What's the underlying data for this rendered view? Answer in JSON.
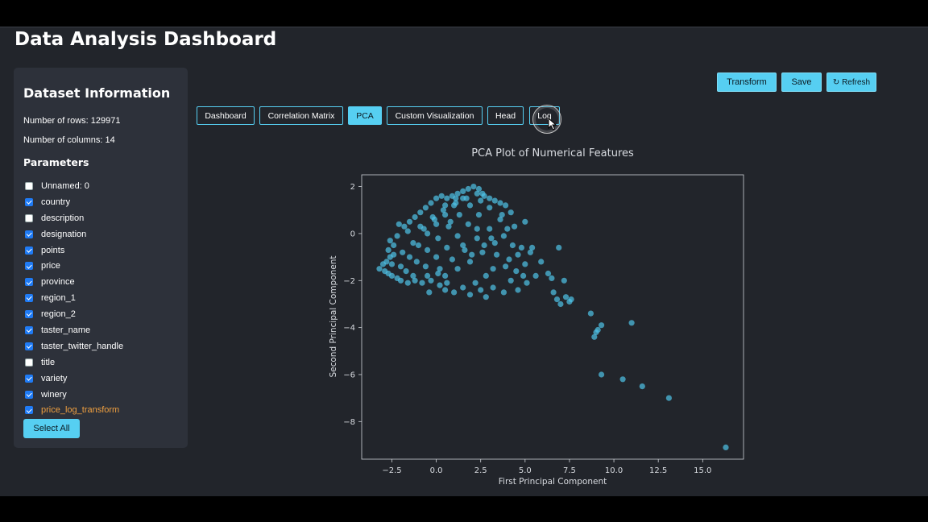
{
  "app": {
    "title": "Data Analysis Dashboard"
  },
  "sidebar": {
    "heading": "Dataset Information",
    "rows_text": "Number of rows: 129971",
    "cols_text": "Number of columns: 14",
    "params_heading": "Parameters",
    "params": [
      {
        "label": "Unnamed: 0",
        "checked": false
      },
      {
        "label": "country",
        "checked": true
      },
      {
        "label": "description",
        "checked": false
      },
      {
        "label": "designation",
        "checked": true
      },
      {
        "label": "points",
        "checked": true
      },
      {
        "label": "price",
        "checked": true
      },
      {
        "label": "province",
        "checked": true
      },
      {
        "label": "region_1",
        "checked": true
      },
      {
        "label": "region_2",
        "checked": true
      },
      {
        "label": "taster_name",
        "checked": true
      },
      {
        "label": "taster_twitter_handle",
        "checked": true
      },
      {
        "label": "title",
        "checked": false
      },
      {
        "label": "variety",
        "checked": true
      },
      {
        "label": "winery",
        "checked": true
      },
      {
        "label": "price_log_transform",
        "checked": true,
        "accent": true
      }
    ],
    "select_all_label": "Select All"
  },
  "actions": {
    "transform_label": "Transform",
    "save_label": "Save",
    "refresh_label": "↻ Refresh"
  },
  "tabs": [
    {
      "label": "Dashboard",
      "active": false
    },
    {
      "label": "Correlation Matrix",
      "active": false
    },
    {
      "label": "PCA",
      "active": true
    },
    {
      "label": "Custom Visualization",
      "active": false
    },
    {
      "label": "Head",
      "active": false
    },
    {
      "label": "Log",
      "active": false
    }
  ],
  "colors": {
    "accent": "#56cff2",
    "point": "#4fc3e8",
    "panel": "#2d313a",
    "background": "#22252b"
  },
  "chart_data": {
    "type": "scatter",
    "title": "PCA Plot of Numerical Features",
    "xlabel": "First Principal Component",
    "ylabel": "Second Principal Component",
    "xlim": [
      -4.2,
      17.3
    ],
    "ylim": [
      -9.6,
      2.5
    ],
    "x_ticks": [
      -2.5,
      0.0,
      2.5,
      5.0,
      7.5,
      10.0,
      12.5,
      15.0
    ],
    "x_tick_labels": [
      "−2.5",
      "0.0",
      "2.5",
      "5.0",
      "7.5",
      "10.0",
      "12.5",
      "15.0"
    ],
    "y_ticks": [
      2,
      0,
      -2,
      -4,
      -6,
      -8
    ],
    "y_tick_labels": [
      "2",
      "0",
      "−2",
      "−4",
      "−6",
      "−8"
    ],
    "grid": false,
    "points": [
      [
        -3.2,
        -1.5
      ],
      [
        -3.0,
        -1.3
      ],
      [
        -2.8,
        -1.2
      ],
      [
        -2.6,
        -1.0
      ],
      [
        -2.4,
        -0.9
      ],
      [
        -2.9,
        -1.6
      ],
      [
        -2.7,
        -1.7
      ],
      [
        -2.5,
        -1.8
      ],
      [
        -2.2,
        -1.9
      ],
      [
        -2.0,
        -2.0
      ],
      [
        -1.6,
        -2.1
      ],
      [
        -1.2,
        -2.0
      ],
      [
        -0.8,
        -2.1
      ],
      [
        -0.3,
        -2.0
      ],
      [
        0.2,
        -2.2
      ],
      [
        0.6,
        -2.1
      ],
      [
        -2.6,
        -0.3
      ],
      [
        -2.4,
        -0.5
      ],
      [
        -2.7,
        -0.7
      ],
      [
        -2.1,
        0.4
      ],
      [
        -1.8,
        0.3
      ],
      [
        -1.5,
        0.5
      ],
      [
        -1.2,
        0.7
      ],
      [
        -0.9,
        0.9
      ],
      [
        -0.6,
        1.1
      ],
      [
        -0.3,
        1.3
      ],
      [
        0.0,
        1.5
      ],
      [
        0.3,
        1.6
      ],
      [
        0.6,
        1.5
      ],
      [
        0.9,
        1.6
      ],
      [
        1.2,
        1.7
      ],
      [
        1.5,
        1.8
      ],
      [
        1.8,
        1.9
      ],
      [
        2.1,
        2.0
      ],
      [
        2.4,
        1.9
      ],
      [
        2.7,
        1.6
      ],
      [
        3.0,
        1.5
      ],
      [
        3.3,
        1.4
      ],
      [
        3.6,
        1.3
      ],
      [
        3.9,
        1.2
      ],
      [
        4.2,
        0.9
      ],
      [
        2.6,
        1.7
      ],
      [
        -2.0,
        -1.4
      ],
      [
        -1.5,
        -1.0
      ],
      [
        -1.0,
        -0.5
      ],
      [
        -0.5,
        0.0
      ],
      [
        0.0,
        0.4
      ],
      [
        0.5,
        0.8
      ],
      [
        1.0,
        1.2
      ],
      [
        1.5,
        1.5
      ],
      [
        -1.7,
        -1.6
      ],
      [
        -1.1,
        -1.2
      ],
      [
        -0.5,
        -0.7
      ],
      [
        0.1,
        -0.2
      ],
      [
        0.7,
        0.3
      ],
      [
        1.3,
        0.8
      ],
      [
        1.9,
        1.2
      ],
      [
        2.5,
        1.4
      ],
      [
        -1.3,
        -1.8
      ],
      [
        -0.6,
        -1.4
      ],
      [
        0.0,
        -1.0
      ],
      [
        0.6,
        -0.6
      ],
      [
        1.2,
        -0.1
      ],
      [
        1.8,
        0.4
      ],
      [
        2.4,
        0.8
      ],
      [
        3.0,
        1.1
      ],
      [
        -0.5,
        -1.8
      ],
      [
        0.2,
        -1.5
      ],
      [
        0.9,
        -1.1
      ],
      [
        1.6,
        -0.7
      ],
      [
        2.3,
        -0.2
      ],
      [
        3.0,
        0.2
      ],
      [
        3.6,
        0.6
      ],
      [
        4.0,
        0.2
      ],
      [
        0.5,
        -1.8
      ],
      [
        1.2,
        -1.5
      ],
      [
        1.9,
        -1.2
      ],
      [
        2.6,
        -0.8
      ],
      [
        3.3,
        -0.4
      ],
      [
        3.8,
        -0.1
      ],
      [
        4.3,
        -0.5
      ],
      [
        4.6,
        -0.9
      ],
      [
        -2.2,
        -0.1
      ],
      [
        -1.6,
        0.1
      ],
      [
        -0.9,
        0.3
      ],
      [
        -0.2,
        0.7
      ],
      [
        0.4,
        1.0
      ],
      [
        1.1,
        1.3
      ],
      [
        1.7,
        1.5
      ],
      [
        2.3,
        1.7
      ],
      [
        -2.5,
        -1.3
      ],
      [
        -1.9,
        -0.8
      ],
      [
        -1.3,
        -0.4
      ],
      [
        -0.7,
        0.2
      ],
      [
        -0.1,
        0.6
      ],
      [
        0.5,
        1.2
      ],
      [
        1.1,
        1.5
      ],
      [
        0.8,
        0.5
      ],
      [
        2.0,
        -0.9
      ],
      [
        2.7,
        -0.5
      ],
      [
        3.4,
        -0.9
      ],
      [
        4.1,
        -1.1
      ],
      [
        4.8,
        -0.6
      ],
      [
        5.3,
        -0.8
      ],
      [
        5.0,
        -1.3
      ],
      [
        4.5,
        -1.6
      ],
      [
        3.9,
        -1.4
      ],
      [
        3.2,
        -1.5
      ],
      [
        2.8,
        -1.8
      ],
      [
        2.2,
        -2.1
      ],
      [
        1.5,
        -2.3
      ],
      [
        1.0,
        -2.5
      ],
      [
        0.5,
        -2.4
      ],
      [
        -0.4,
        -2.5
      ],
      [
        1.9,
        -2.6
      ],
      [
        2.5,
        -2.4
      ],
      [
        3.2,
        -2.3
      ],
      [
        3.8,
        -2.5
      ],
      [
        4.6,
        -2.4
      ],
      [
        5.1,
        -2.1
      ],
      [
        4.2,
        -2.0
      ],
      [
        2.8,
        -2.7
      ],
      [
        2.3,
        0.2
      ],
      [
        3.1,
        -0.2
      ],
      [
        3.7,
        0.8
      ],
      [
        4.4,
        0.3
      ],
      [
        5.0,
        0.5
      ],
      [
        5.4,
        -0.6
      ],
      [
        5.9,
        -1.2
      ],
      [
        4.9,
        -1.8
      ],
      [
        5.6,
        -1.8
      ],
      [
        6.3,
        -1.7
      ],
      [
        6.5,
        -1.9
      ],
      [
        6.9,
        -0.6
      ],
      [
        6.6,
        -2.5
      ],
      [
        6.8,
        -2.8
      ],
      [
        7.0,
        -3.0
      ],
      [
        7.3,
        -2.7
      ],
      [
        7.5,
        -2.9
      ],
      [
        7.2,
        -2.0
      ],
      [
        7.6,
        -2.8
      ],
      [
        8.7,
        -3.4
      ],
      [
        9.0,
        -4.2
      ],
      [
        9.1,
        -4.1
      ],
      [
        9.3,
        -3.9
      ],
      [
        8.9,
        -4.4
      ],
      [
        11.0,
        -3.8
      ],
      [
        9.3,
        -6.0
      ],
      [
        10.5,
        -6.2
      ],
      [
        11.6,
        -6.5
      ],
      [
        13.1,
        -7.0
      ],
      [
        16.3,
        -9.1
      ],
      [
        1.5,
        -0.5
      ],
      [
        0.1,
        -1.7
      ]
    ]
  }
}
